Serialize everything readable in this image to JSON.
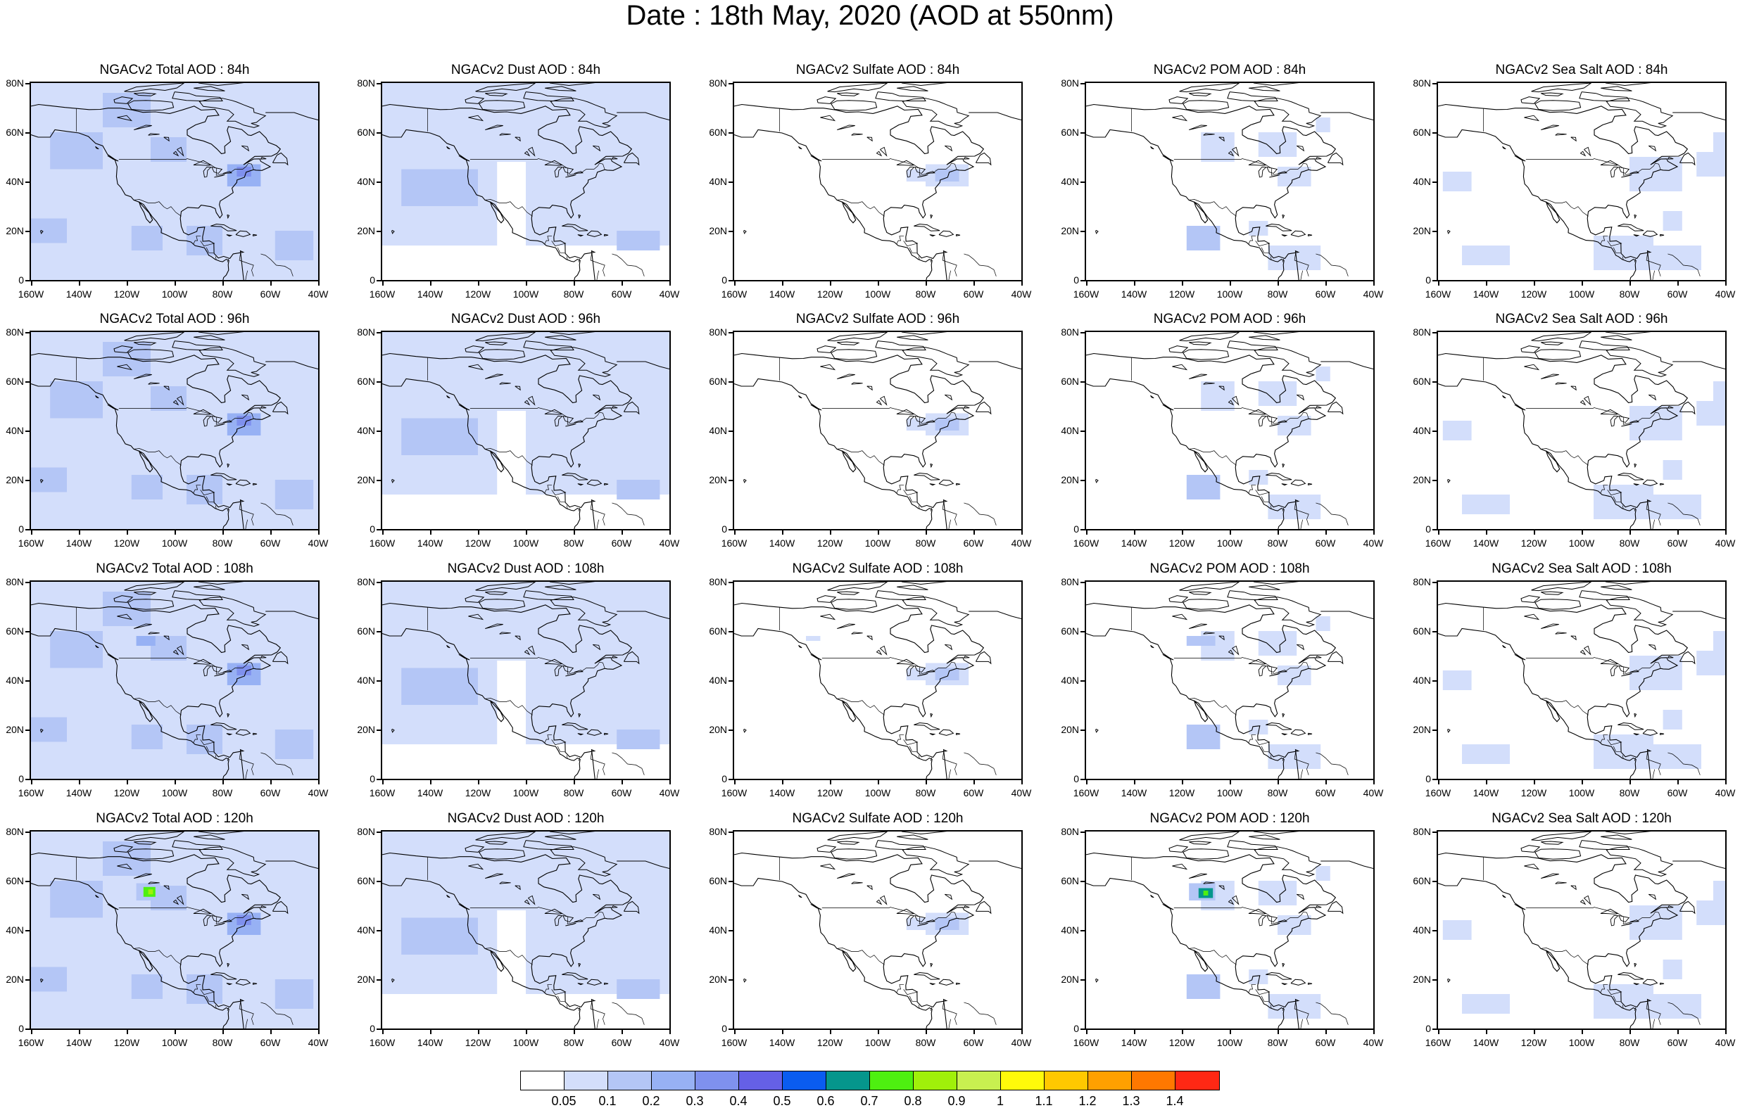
{
  "title": "Date : 18th May, 2020 (AOD at 550nm)",
  "lat_labels": [
    "80N",
    "60N",
    "40N",
    "20N",
    "0"
  ],
  "lon_labels": [
    "160W",
    "140W",
    "120W",
    "100W",
    "80W",
    "60W",
    "40W"
  ],
  "rows": [
    {
      "lead": "84h",
      "titles": [
        "NGACv2 Total AOD : 84h",
        "NGACv2 Dust AOD : 84h",
        "NGACv2 Sulfate AOD : 84h",
        "NGACv2 POM AOD : 84h",
        "NGACv2 Sea Salt AOD : 84h"
      ]
    },
    {
      "lead": "96h",
      "titles": [
        "NGACv2 Total AOD : 96h",
        "NGACv2 Dust AOD : 96h",
        "NGACv2 Sulfate AOD : 96h",
        "NGACv2 POM AOD : 96h",
        "NGACv2 Sea Salt AOD : 96h"
      ]
    },
    {
      "lead": "108h",
      "titles": [
        "NGACv2 Total AOD : 108h",
        "NGACv2 Dust AOD : 108h",
        "NGACv2 Sulfate AOD : 108h",
        "NGACv2 POM AOD : 108h",
        "NGACv2 Sea Salt AOD : 108h"
      ]
    },
    {
      "lead": "120h",
      "titles": [
        "NGACv2 Total AOD : 120h",
        "NGACv2 Dust AOD : 120h",
        "NGACv2 Sulfate AOD : 120h",
        "NGACv2 POM AOD : 120h",
        "NGACv2 Sea Salt  AOD : 120h"
      ]
    }
  ],
  "colorbar": {
    "colors": [
      "#ffffff",
      "#d3defb",
      "#b4c6f6",
      "#97b1f4",
      "#7f91ee",
      "#6560e6",
      "#0a5cf0",
      "#05968c",
      "#4ef010",
      "#a0f00a",
      "#c8f050",
      "#fffa0a",
      "#ffc800",
      "#ffa000",
      "#ff7800",
      "#ff2814"
    ],
    "labels": [
      "0.05",
      "0.1",
      "0.2",
      "0.3",
      "0.4",
      "0.5",
      "0.6",
      "0.7",
      "0.8",
      "0.9",
      "1",
      "1.1",
      "1.2",
      "1.3",
      "1.4"
    ]
  }
}
